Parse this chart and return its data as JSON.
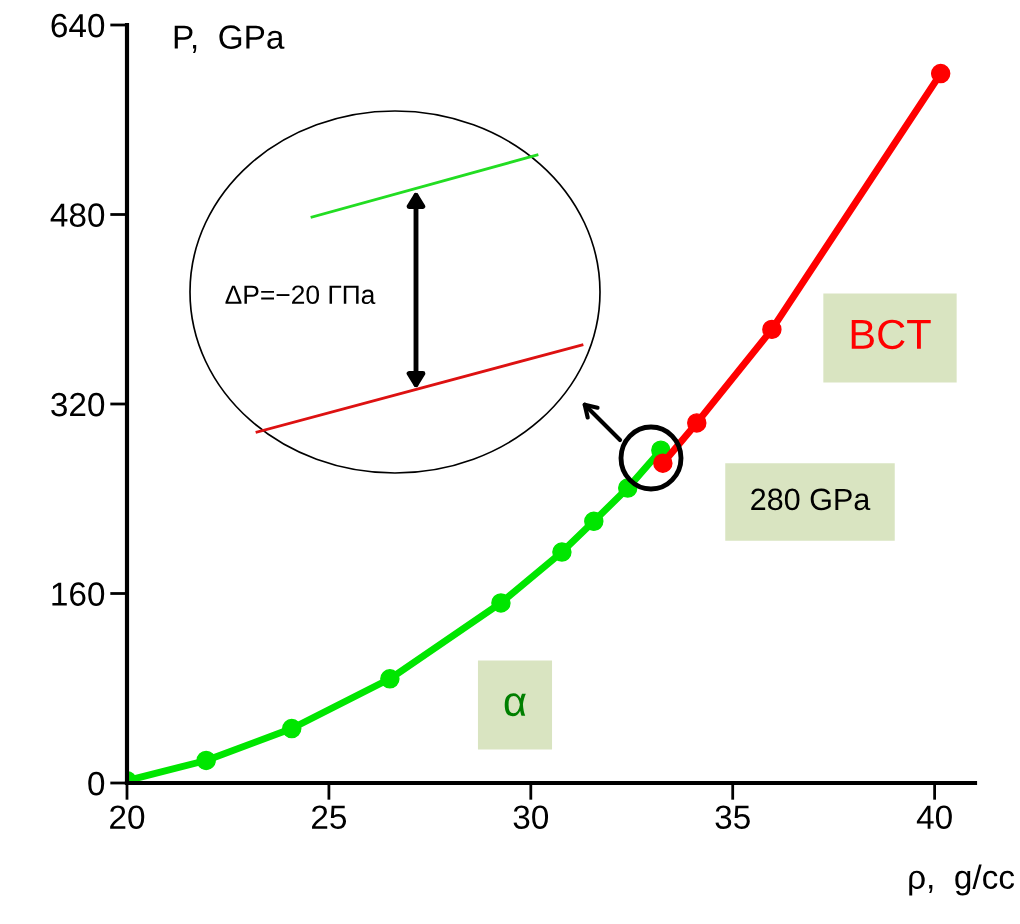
{
  "chart_data": {
    "type": "line",
    "xlabel": "ρ,  g/cc",
    "ylabel": "P,  GPa",
    "xlim": [
      20,
      41
    ],
    "ylim": [
      0,
      640
    ],
    "xticks": [
      20,
      25,
      30,
      35,
      40
    ],
    "yticks": [
      0,
      160,
      320,
      480,
      640
    ],
    "grid": false,
    "legend": false,
    "marker": "circle",
    "line_style": "solid",
    "series": [
      {
        "name": "α",
        "color": "#00e600",
        "x": [
          20.0,
          21.96,
          24.08,
          26.51,
          29.26,
          30.77,
          31.56,
          32.4,
          33.22
        ],
        "values": [
          2,
          19,
          46,
          88,
          152,
          195,
          221,
          249,
          281
        ]
      },
      {
        "name": "BCT",
        "color": "#ff0000",
        "x": [
          33.27,
          34.11,
          35.97,
          40.15
        ],
        "values": [
          270,
          304,
          383,
          599
        ]
      }
    ],
    "annotations": [
      "280 GPa",
      "ΔP=−20 ГПа"
    ]
  }
}
